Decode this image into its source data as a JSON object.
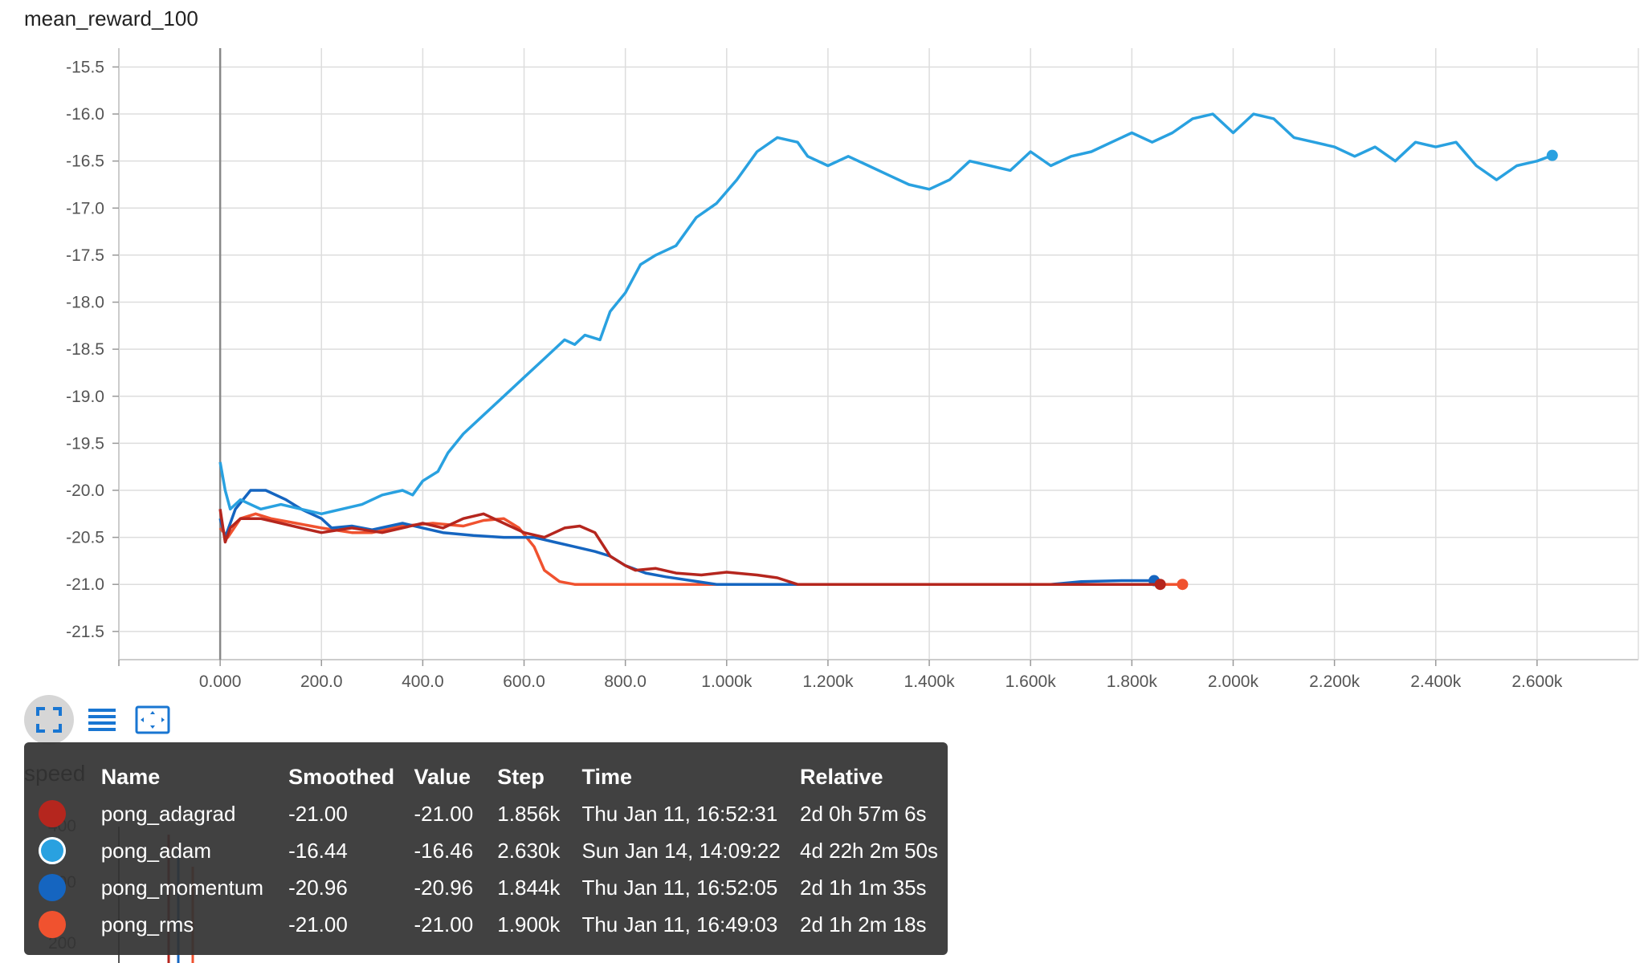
{
  "title": "mean_reward_100",
  "toolbar": {
    "fit_icon": "fit-domain-icon",
    "log_icon": "log-scale-icon",
    "zoom_icon": "selection-zoom-icon",
    "accent": "#1976d2"
  },
  "background_chart": {
    "label": "speed",
    "ticks": [
      "400",
      "300",
      "200"
    ]
  },
  "chart_data": {
    "type": "line",
    "title": "mean_reward_100",
    "xlabel": "",
    "ylabel": "",
    "xlim": [
      -200,
      2800
    ],
    "ylim": [
      -21.8,
      -15.3
    ],
    "x_ticks": [
      "0.000",
      "200.0",
      "400.0",
      "600.0",
      "800.0",
      "1.000k",
      "1.200k",
      "1.400k",
      "1.600k",
      "1.800k",
      "2.000k",
      "2.200k",
      "2.400k",
      "2.600k"
    ],
    "y_ticks": [
      "-15.5",
      "-16.0",
      "-16.5",
      "-17.0",
      "-17.5",
      "-18.0",
      "-18.5",
      "-19.0",
      "-19.5",
      "-20.0",
      "-20.5",
      "-21.0",
      "-21.5"
    ],
    "grid": true,
    "series": [
      {
        "name": "pong_adam",
        "color": "#29a1e0",
        "points": [
          [
            0,
            -19.7
          ],
          [
            10,
            -20.0
          ],
          [
            20,
            -20.2
          ],
          [
            40,
            -20.1
          ],
          [
            60,
            -20.15
          ],
          [
            80,
            -20.2
          ],
          [
            120,
            -20.15
          ],
          [
            160,
            -20.2
          ],
          [
            200,
            -20.25
          ],
          [
            240,
            -20.2
          ],
          [
            280,
            -20.15
          ],
          [
            320,
            -20.05
          ],
          [
            360,
            -20.0
          ],
          [
            380,
            -20.05
          ],
          [
            400,
            -19.9
          ],
          [
            430,
            -19.8
          ],
          [
            450,
            -19.6
          ],
          [
            480,
            -19.4
          ],
          [
            520,
            -19.2
          ],
          [
            560,
            -19.0
          ],
          [
            600,
            -18.8
          ],
          [
            640,
            -18.6
          ],
          [
            680,
            -18.4
          ],
          [
            700,
            -18.45
          ],
          [
            720,
            -18.35
          ],
          [
            750,
            -18.4
          ],
          [
            770,
            -18.1
          ],
          [
            800,
            -17.9
          ],
          [
            830,
            -17.6
          ],
          [
            860,
            -17.5
          ],
          [
            900,
            -17.4
          ],
          [
            940,
            -17.1
          ],
          [
            980,
            -16.95
          ],
          [
            1020,
            -16.7
          ],
          [
            1060,
            -16.4
          ],
          [
            1100,
            -16.25
          ],
          [
            1140,
            -16.3
          ],
          [
            1160,
            -16.45
          ],
          [
            1200,
            -16.55
          ],
          [
            1240,
            -16.45
          ],
          [
            1280,
            -16.55
          ],
          [
            1320,
            -16.65
          ],
          [
            1360,
            -16.75
          ],
          [
            1400,
            -16.8
          ],
          [
            1440,
            -16.7
          ],
          [
            1480,
            -16.5
          ],
          [
            1520,
            -16.55
          ],
          [
            1560,
            -16.6
          ],
          [
            1600,
            -16.4
          ],
          [
            1640,
            -16.55
          ],
          [
            1680,
            -16.45
          ],
          [
            1720,
            -16.4
          ],
          [
            1760,
            -16.3
          ],
          [
            1800,
            -16.2
          ],
          [
            1840,
            -16.3
          ],
          [
            1880,
            -16.2
          ],
          [
            1920,
            -16.05
          ],
          [
            1960,
            -16.0
          ],
          [
            2000,
            -16.2
          ],
          [
            2040,
            -16.0
          ],
          [
            2080,
            -16.05
          ],
          [
            2120,
            -16.25
          ],
          [
            2160,
            -16.3
          ],
          [
            2200,
            -16.35
          ],
          [
            2240,
            -16.45
          ],
          [
            2280,
            -16.35
          ],
          [
            2320,
            -16.5
          ],
          [
            2360,
            -16.3
          ],
          [
            2400,
            -16.35
          ],
          [
            2440,
            -16.3
          ],
          [
            2480,
            -16.55
          ],
          [
            2520,
            -16.7
          ],
          [
            2560,
            -16.55
          ],
          [
            2600,
            -16.5
          ],
          [
            2630,
            -16.44
          ]
        ]
      },
      {
        "name": "pong_adagrad",
        "color": "#b5261e",
        "points": [
          [
            0,
            -20.2
          ],
          [
            10,
            -20.55
          ],
          [
            20,
            -20.4
          ],
          [
            40,
            -20.3
          ],
          [
            80,
            -20.3
          ],
          [
            120,
            -20.35
          ],
          [
            160,
            -20.4
          ],
          [
            200,
            -20.45
          ],
          [
            260,
            -20.4
          ],
          [
            320,
            -20.45
          ],
          [
            400,
            -20.35
          ],
          [
            440,
            -20.4
          ],
          [
            480,
            -20.3
          ],
          [
            520,
            -20.25
          ],
          [
            560,
            -20.35
          ],
          [
            600,
            -20.45
          ],
          [
            640,
            -20.5
          ],
          [
            680,
            -20.4
          ],
          [
            710,
            -20.38
          ],
          [
            740,
            -20.45
          ],
          [
            770,
            -20.7
          ],
          [
            800,
            -20.8
          ],
          [
            820,
            -20.85
          ],
          [
            860,
            -20.83
          ],
          [
            900,
            -20.88
          ],
          [
            950,
            -20.9
          ],
          [
            1000,
            -20.87
          ],
          [
            1060,
            -20.9
          ],
          [
            1100,
            -20.93
          ],
          [
            1140,
            -21.0
          ],
          [
            1300,
            -21.0
          ],
          [
            1600,
            -21.0
          ],
          [
            1856,
            -21.0
          ]
        ]
      },
      {
        "name": "pong_momentum",
        "color": "#1565c0",
        "points": [
          [
            0,
            -20.3
          ],
          [
            10,
            -20.5
          ],
          [
            30,
            -20.2
          ],
          [
            60,
            -20.0
          ],
          [
            90,
            -20.0
          ],
          [
            130,
            -20.1
          ],
          [
            160,
            -20.2
          ],
          [
            200,
            -20.3
          ],
          [
            220,
            -20.4
          ],
          [
            260,
            -20.38
          ],
          [
            300,
            -20.42
          ],
          [
            360,
            -20.35
          ],
          [
            400,
            -20.4
          ],
          [
            440,
            -20.45
          ],
          [
            500,
            -20.48
          ],
          [
            560,
            -20.5
          ],
          [
            620,
            -20.5
          ],
          [
            660,
            -20.55
          ],
          [
            700,
            -20.6
          ],
          [
            740,
            -20.65
          ],
          [
            770,
            -20.7
          ],
          [
            800,
            -20.8
          ],
          [
            840,
            -20.88
          ],
          [
            880,
            -20.92
          ],
          [
            930,
            -20.96
          ],
          [
            980,
            -21.0
          ],
          [
            1100,
            -21.0
          ],
          [
            1500,
            -21.0
          ],
          [
            1640,
            -21.0
          ],
          [
            1700,
            -20.97
          ],
          [
            1780,
            -20.96
          ],
          [
            1844,
            -20.96
          ]
        ]
      },
      {
        "name": "pong_rms",
        "color": "#f0522f",
        "points": [
          [
            0,
            -20.4
          ],
          [
            15,
            -20.5
          ],
          [
            40,
            -20.3
          ],
          [
            70,
            -20.25
          ],
          [
            100,
            -20.3
          ],
          [
            150,
            -20.35
          ],
          [
            200,
            -20.4
          ],
          [
            260,
            -20.45
          ],
          [
            300,
            -20.45
          ],
          [
            360,
            -20.38
          ],
          [
            420,
            -20.35
          ],
          [
            480,
            -20.38
          ],
          [
            520,
            -20.32
          ],
          [
            560,
            -20.3
          ],
          [
            590,
            -20.4
          ],
          [
            620,
            -20.6
          ],
          [
            640,
            -20.85
          ],
          [
            670,
            -20.97
          ],
          [
            700,
            -21.0
          ],
          [
            800,
            -21.0
          ],
          [
            1200,
            -21.0
          ],
          [
            1600,
            -21.0
          ],
          [
            1900,
            -21.0
          ]
        ]
      }
    ]
  },
  "tooltip": {
    "headers": [
      "Name",
      "Smoothed",
      "Value",
      "Step",
      "Time",
      "Relative"
    ],
    "rows": [
      {
        "color": "#b5261e",
        "name": "pong_adagrad",
        "smoothed": "-21.00",
        "value": "-21.00",
        "step": "1.856k",
        "time": "Thu Jan 11, 16:52:31",
        "relative": "2d 0h 57m 6s"
      },
      {
        "color": "#29a1e0",
        "name": "pong_adam",
        "smoothed": "-16.44",
        "value": "-16.46",
        "step": "2.630k",
        "time": "Sun Jan 14, 14:09:22",
        "relative": "4d 22h 2m 50s"
      },
      {
        "color": "#1565c0",
        "name": "pong_momentum",
        "smoothed": "-20.96",
        "value": "-20.96",
        "step": "1.844k",
        "time": "Thu Jan 11, 16:52:05",
        "relative": "2d 1h 1m 35s"
      },
      {
        "color": "#f0522f",
        "name": "pong_rms",
        "smoothed": "-21.00",
        "value": "-21.00",
        "step": "1.900k",
        "time": "Thu Jan 11, 16:49:03",
        "relative": "2d 1h 2m 18s"
      }
    ]
  }
}
